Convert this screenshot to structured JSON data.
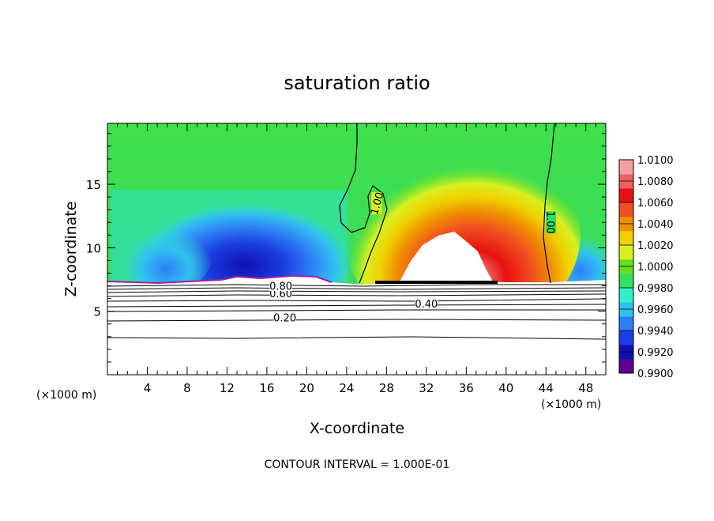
{
  "chart_data": {
    "type": "heatmap",
    "title": "saturation ratio",
    "xlabel": "X-coordinate",
    "ylabel": "Z-coordinate",
    "x_unit_left": "(×1000 m)",
    "x_unit_right": "(×1000 m)",
    "footer": "CONTOUR INTERVAL = 1.000E-01",
    "xlim": [
      0,
      50
    ],
    "ylim": [
      0,
      19.8
    ],
    "x_ticks": [
      4,
      8,
      12,
      16,
      20,
      24,
      28,
      32,
      36,
      40,
      44,
      48
    ],
    "y_ticks": [
      5,
      10,
      15
    ],
    "colorbar": {
      "min": 0.99,
      "max": 1.01,
      "tick_labels": [
        "0.9900",
        "0.9920",
        "0.9940",
        "0.9960",
        "0.9980",
        "1.0000",
        "1.0020",
        "1.0040",
        "1.0060",
        "1.0080",
        "1.0100"
      ],
      "colors": [
        "#5a008a",
        "#1010b0",
        "#1a3ce0",
        "#2d7ff5",
        "#30c0f0",
        "#30f0c8",
        "#30e060",
        "#60e020",
        "#d8f020",
        "#f0d000",
        "#f09000",
        "#f05020",
        "#e81010",
        "#f06060",
        "#f4a0a0"
      ]
    },
    "contour_labels": [
      {
        "text": "0.20",
        "x": 17.8,
        "z": 4.5
      },
      {
        "text": "0.40",
        "x": 32.0,
        "z": 5.6
      },
      {
        "text": "0.60",
        "x": 17.4,
        "z": 6.4
      },
      {
        "text": "0.80",
        "x": 17.4,
        "z": 7.0
      },
      {
        "text": "1.00",
        "x": 27.0,
        "z": 13.5
      },
      {
        "text": "1.00",
        "x": 44.5,
        "z": 12.0
      }
    ]
  }
}
